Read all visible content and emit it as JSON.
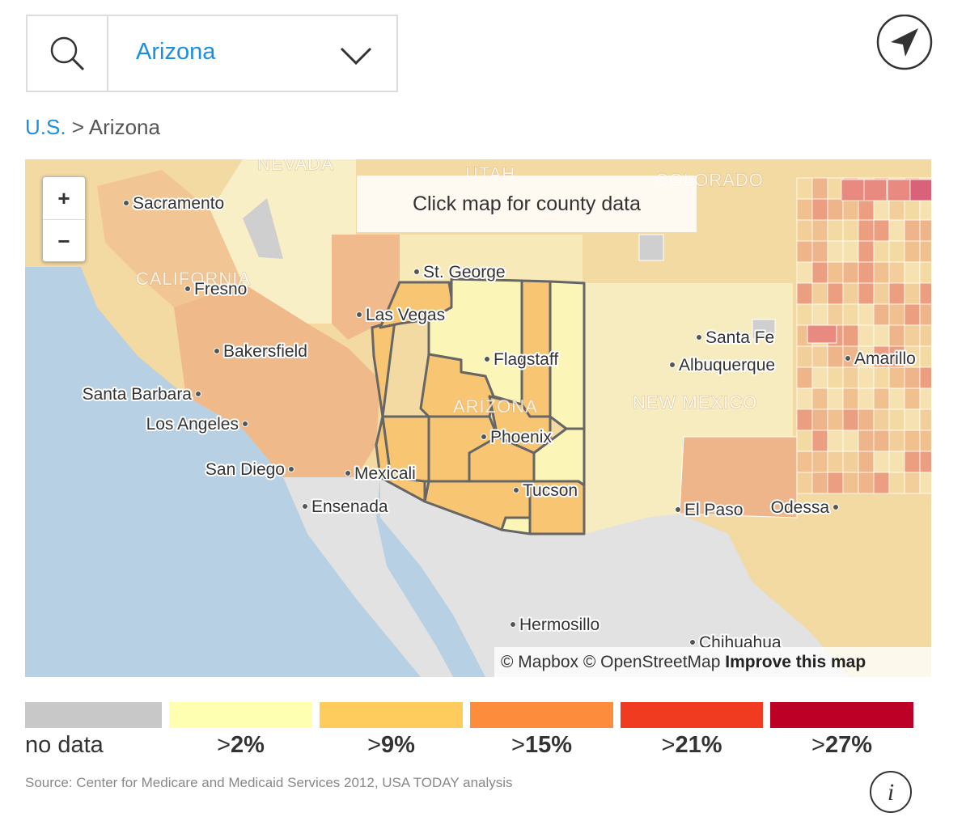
{
  "search": {
    "selected": "Arizona"
  },
  "breadcrumb": {
    "root": "U.S.",
    "separator": ">",
    "current": "Arizona"
  },
  "map": {
    "hint": "Click map for county data",
    "zoom_in": "+",
    "zoom_out": "−",
    "states": [
      "NEVADA",
      "UTAH",
      "COLORADO",
      "CALIFORNIA",
      "ARIZONA",
      "NEW MEXICO"
    ],
    "cities": [
      "Sacramento",
      "Fresno",
      "Las Vegas",
      "St. George",
      "Bakersfield",
      "Santa Barbara",
      "Los Angeles",
      "San Diego",
      "Mexicali",
      "Ensenada",
      "Flagstaff",
      "Phoenix",
      "Tucson",
      "Santa Fe",
      "Albuquerque",
      "Amarillo",
      "El Paso",
      "Odessa",
      "Hermosillo",
      "Chihuahua"
    ],
    "attribution": "© Mapbox © OpenStreetMap",
    "improve": "Improve this map"
  },
  "legend": [
    {
      "label": "no data",
      "color": "#c8c8c8"
    },
    {
      "prefix": ">",
      "label": "2%",
      "color": "#ffffb2"
    },
    {
      "prefix": ">",
      "label": "9%",
      "color": "#fecc5c"
    },
    {
      "prefix": ">",
      "label": "15%",
      "color": "#fd8d3c"
    },
    {
      "prefix": ">",
      "label": "21%",
      "color": "#f03b20"
    },
    {
      "prefix": ">",
      "label": "27%",
      "color": "#bd0026"
    }
  ],
  "source": "Source: Center for Medicare and Medicaid Services 2012, USA TODAY analysis",
  "info": "i"
}
